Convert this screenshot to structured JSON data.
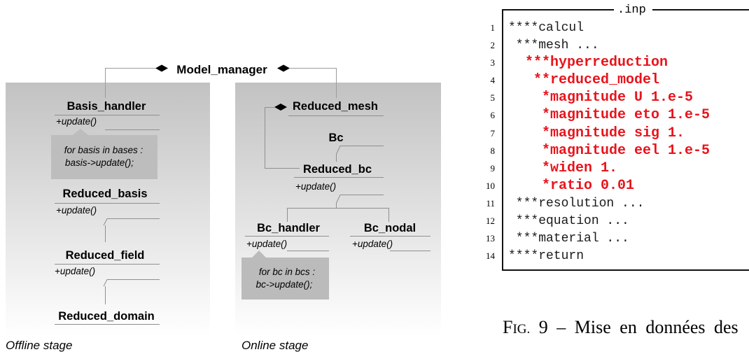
{
  "diagram": {
    "root": {
      "name": "Model_manager"
    },
    "offline": {
      "label": "Offline stage",
      "basis_handler": {
        "name": "Basis_handler",
        "method": "+update()",
        "note": [
          "for basis in bases :",
          "basis->update();"
        ]
      },
      "reduced_basis": {
        "name": "Reduced_basis",
        "method": "+update()"
      },
      "reduced_field": {
        "name": "Reduced_field",
        "method": "+update()"
      },
      "reduced_domain": {
        "name": "Reduced_domain"
      }
    },
    "online": {
      "label": "Online stage",
      "reduced_mesh": {
        "name": "Reduced_mesh"
      },
      "bc": {
        "name": "Bc"
      },
      "reduced_bc": {
        "name": "Reduced_bc",
        "method": "+update()"
      },
      "bc_handler": {
        "name": "Bc_handler",
        "method": "+update()",
        "note": [
          "for bc in bcs :",
          "bc->update();"
        ]
      },
      "bc_nodal": {
        "name": "Bc_nodal",
        "method": "+update()"
      }
    }
  },
  "listing": {
    "title": ".inp",
    "lines": [
      {
        "n": "1",
        "text": "****calcul",
        "highlight": false
      },
      {
        "n": "2",
        "text": " ***mesh ...",
        "highlight": false
      },
      {
        "n": "3",
        "text": "  ***hyperreduction",
        "highlight": true
      },
      {
        "n": "4",
        "text": "   **reduced_model",
        "highlight": true
      },
      {
        "n": "5",
        "text": "    *magnitude U 1.e-5",
        "highlight": true
      },
      {
        "n": "6",
        "text": "    *magnitude eto 1.e-5",
        "highlight": true
      },
      {
        "n": "7",
        "text": "    *magnitude sig 1.",
        "highlight": true
      },
      {
        "n": "8",
        "text": "    *magnitude eel 1.e-5",
        "highlight": true
      },
      {
        "n": "9",
        "text": "    *widen 1.",
        "highlight": true
      },
      {
        "n": "10",
        "text": "    *ratio 0.01",
        "highlight": true
      },
      {
        "n": "11",
        "text": " ***resolution ...",
        "highlight": false
      },
      {
        "n": "12",
        "text": " ***equation ...",
        "highlight": false
      },
      {
        "n": "13",
        "text": " ***material ...",
        "highlight": false
      },
      {
        "n": "14",
        "text": "****return",
        "highlight": false
      }
    ]
  },
  "caption": {
    "label": "FIG.",
    "text": "9 – Mise en données des"
  },
  "colors": {
    "highlight": "#e8141c"
  }
}
